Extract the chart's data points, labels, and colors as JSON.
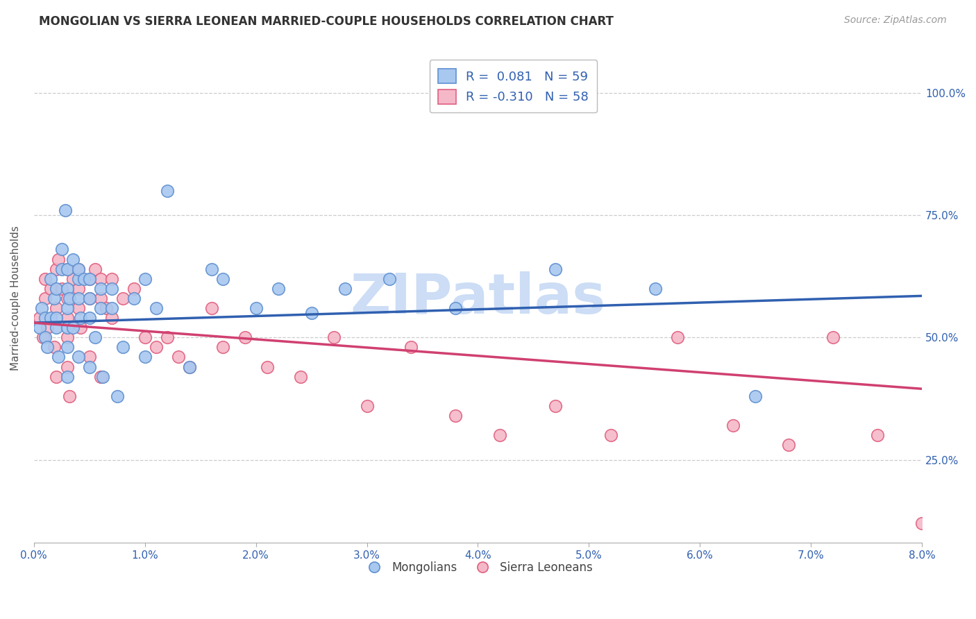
{
  "title": "MONGOLIAN VS SIERRA LEONEAN MARRIED-COUPLE HOUSEHOLDS CORRELATION CHART",
  "source": "Source: ZipAtlas.com",
  "ylabel": "Married-couple Households",
  "ytick_vals": [
    0.25,
    0.5,
    0.75,
    1.0
  ],
  "ytick_labels": [
    "25.0%",
    "50.0%",
    "75.0%",
    "100.0%"
  ],
  "xtick_vals": [
    0.0,
    0.01,
    0.02,
    0.03,
    0.04,
    0.05,
    0.06,
    0.07,
    0.08
  ],
  "xtick_labels": [
    "0.0%",
    "1.0%",
    "2.0%",
    "3.0%",
    "4.0%",
    "5.0%",
    "6.0%",
    "7.0%",
    "8.0%"
  ],
  "legend_line1": "R =  0.081   N = 59",
  "legend_line2": "R = -0.310   N = 58",
  "mongolian_color": "#a8c8f0",
  "mongolian_edge": "#6090d0",
  "sierra_color": "#f5b8c8",
  "sierra_edge": "#e06080",
  "mongolian_line_color": "#3060b0",
  "sierra_line_color": "#d04070",
  "background_color": "#ffffff",
  "grid_color": "#cccccc",
  "watermark": "ZIPatlas",
  "watermark_color": "#ccddf5",
  "xlim": [
    0.0,
    0.08
  ],
  "ylim": [
    0.08,
    1.08
  ],
  "mongolian_x": [
    0.0005,
    0.0007,
    0.001,
    0.001,
    0.0012,
    0.0015,
    0.0015,
    0.0018,
    0.002,
    0.002,
    0.002,
    0.0022,
    0.0025,
    0.0025,
    0.0028,
    0.003,
    0.003,
    0.003,
    0.003,
    0.003,
    0.003,
    0.0032,
    0.0035,
    0.0035,
    0.004,
    0.004,
    0.004,
    0.004,
    0.0042,
    0.0045,
    0.005,
    0.005,
    0.005,
    0.005,
    0.0055,
    0.006,
    0.006,
    0.0062,
    0.007,
    0.007,
    0.0075,
    0.008,
    0.009,
    0.01,
    0.01,
    0.011,
    0.012,
    0.014,
    0.016,
    0.017,
    0.02,
    0.022,
    0.025,
    0.028,
    0.032,
    0.038,
    0.047,
    0.056,
    0.065
  ],
  "mongolian_y": [
    0.52,
    0.56,
    0.5,
    0.54,
    0.48,
    0.62,
    0.54,
    0.58,
    0.52,
    0.54,
    0.6,
    0.46,
    0.64,
    0.68,
    0.76,
    0.56,
    0.6,
    0.64,
    0.52,
    0.48,
    0.42,
    0.58,
    0.66,
    0.52,
    0.58,
    0.62,
    0.64,
    0.46,
    0.54,
    0.62,
    0.58,
    0.62,
    0.54,
    0.44,
    0.5,
    0.6,
    0.56,
    0.42,
    0.6,
    0.56,
    0.38,
    0.48,
    0.58,
    0.62,
    0.46,
    0.56,
    0.8,
    0.44,
    0.64,
    0.62,
    0.56,
    0.6,
    0.55,
    0.6,
    0.62,
    0.56,
    0.64,
    0.6,
    0.38
  ],
  "sierra_x": [
    0.0005,
    0.0008,
    0.001,
    0.001,
    0.0012,
    0.0015,
    0.0018,
    0.002,
    0.002,
    0.002,
    0.0022,
    0.0025,
    0.003,
    0.003,
    0.003,
    0.003,
    0.003,
    0.0032,
    0.0035,
    0.004,
    0.004,
    0.004,
    0.0042,
    0.005,
    0.005,
    0.005,
    0.0055,
    0.006,
    0.006,
    0.006,
    0.0065,
    0.007,
    0.007,
    0.008,
    0.009,
    0.01,
    0.011,
    0.012,
    0.013,
    0.014,
    0.016,
    0.017,
    0.019,
    0.021,
    0.024,
    0.027,
    0.03,
    0.034,
    0.038,
    0.042,
    0.047,
    0.052,
    0.058,
    0.063,
    0.068,
    0.072,
    0.076,
    0.08
  ],
  "sierra_y": [
    0.54,
    0.5,
    0.58,
    0.62,
    0.52,
    0.6,
    0.48,
    0.64,
    0.56,
    0.42,
    0.66,
    0.6,
    0.64,
    0.58,
    0.54,
    0.5,
    0.44,
    0.38,
    0.62,
    0.64,
    0.6,
    0.56,
    0.52,
    0.62,
    0.58,
    0.46,
    0.64,
    0.62,
    0.58,
    0.42,
    0.56,
    0.62,
    0.54,
    0.58,
    0.6,
    0.5,
    0.48,
    0.5,
    0.46,
    0.44,
    0.56,
    0.48,
    0.5,
    0.44,
    0.42,
    0.5,
    0.36,
    0.48,
    0.34,
    0.3,
    0.36,
    0.3,
    0.5,
    0.32,
    0.28,
    0.5,
    0.3,
    0.12
  ]
}
